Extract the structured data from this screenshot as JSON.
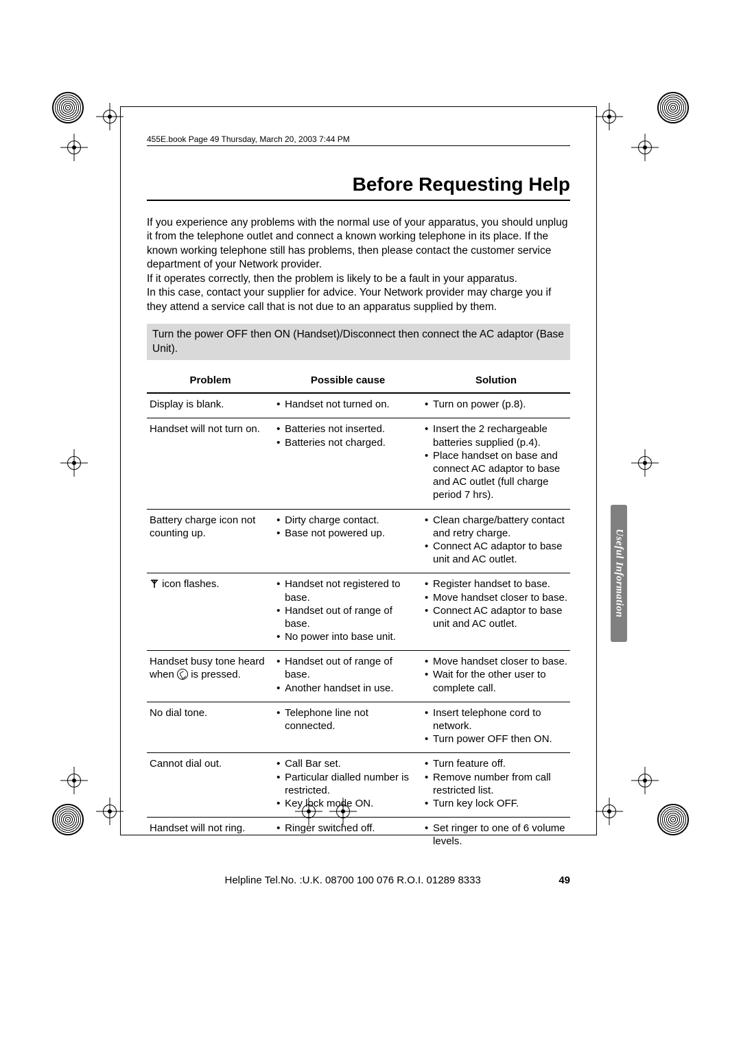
{
  "header_line": "455E.book  Page 49  Thursday, March 20, 2003  7:44 PM",
  "title": "Before Requesting Help",
  "intro": {
    "p1": "If you experience any problems with the normal use of your apparatus, you should unplug it from the telephone outlet and connect a known working telephone in its place. If the known working telephone still has problems, then please contact the customer service department of your Network provider.",
    "p2": "If it operates correctly, then the problem is likely to be a fault in your apparatus.",
    "p3": "In this case, contact your supplier for advice. Your Network provider may charge you if they attend a service call that is not due to an apparatus supplied by them."
  },
  "tip": "Turn the power OFF then ON (Handset)/Disconnect then connect the AC adaptor (Base Unit).",
  "columns": {
    "c1": "Problem",
    "c2": "Possible cause",
    "c3": "Solution"
  },
  "rows": [
    {
      "problem": "Display is blank.",
      "cause": [
        "Handset not turned on."
      ],
      "solution": [
        "Turn on power (p.8)."
      ]
    },
    {
      "problem": "Handset will not turn on.",
      "cause": [
        "Batteries not inserted.",
        "Batteries not charged."
      ],
      "solution": [
        "Insert the 2 rechargeable batteries supplied (p.4).",
        "Place handset on base and connect AC adaptor to base and AC outlet (full charge period 7 hrs)."
      ]
    },
    {
      "problem": "Battery charge icon not counting up.",
      "cause": [
        "Dirty charge contact.",
        "Base not powered up."
      ],
      "solution": [
        "Clean charge/battery contact and retry charge.",
        "Connect AC adaptor to base unit and AC outlet."
      ]
    },
    {
      "problem_icon": "antenna",
      "problem": " icon flashes.",
      "cause": [
        "Handset not registered to base.",
        "Handset out of range of base.",
        "No power into base unit."
      ],
      "solution": [
        "Register handset to base.",
        "Move handset closer to base.",
        "Connect AC adaptor to base unit and AC outlet."
      ]
    },
    {
      "problem_pre": "Handset busy tone heard when ",
      "problem_icon": "phone",
      "problem_post": " is pressed.",
      "cause": [
        "Handset out of range of base.",
        "Another handset in use."
      ],
      "solution": [
        "Move handset closer to base.",
        "Wait for the other user to complete call."
      ]
    },
    {
      "problem": "No dial tone.",
      "cause": [
        "Telephone line not connected."
      ],
      "solution": [
        "Insert telephone cord to network.",
        "Turn power OFF then ON."
      ]
    },
    {
      "problem": "Cannot dial out.",
      "cause": [
        "Call Bar set.",
        "Particular dialled number is restricted.",
        "Key lock mode ON."
      ],
      "solution": [
        "Turn feature off.",
        "Remove number from call restricted list.",
        "Turn key lock OFF."
      ]
    },
    {
      "problem": "Handset will not ring.",
      "cause": [
        "Ringer switched off."
      ],
      "solution": [
        "Set ringer to one of 6 volume levels."
      ]
    }
  ],
  "footer": {
    "helpline": "Helpline Tel.No. :U.K. 08700 100 076  R.O.I. 01289 8333",
    "page": "49"
  },
  "side_tab": "Useful Information",
  "colors": {
    "tip_bg": "#d9d9d9",
    "tab_bg": "#808080",
    "text": "#000000"
  }
}
